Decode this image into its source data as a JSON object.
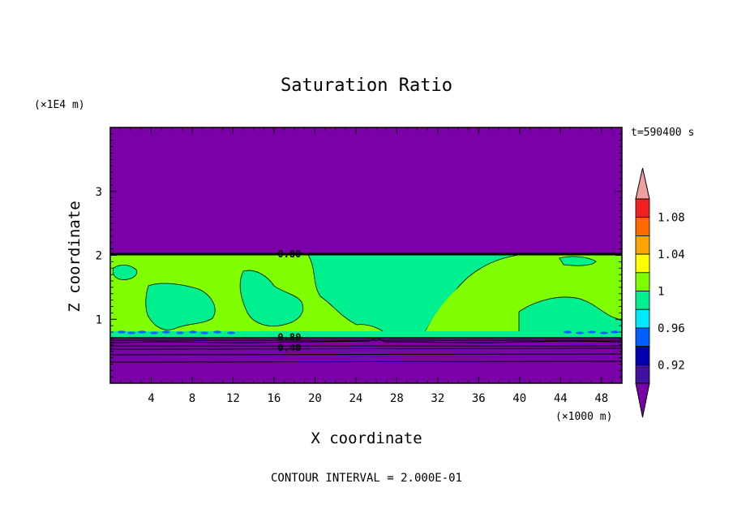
{
  "chart_data": {
    "type": "heatmap",
    "title": "Saturation Ratio",
    "xlabel": "X coordinate",
    "ylabel": "Z coordinate",
    "x_unit": "(×1000 m)",
    "y_unit": "(×1E4 m)",
    "time_label": "t=590400 s",
    "footer": "CONTOUR INTERVAL = 2.000E-01",
    "xlim": [
      0,
      50
    ],
    "ylim": [
      0,
      4
    ],
    "x_ticks": [
      4,
      8,
      12,
      16,
      20,
      24,
      28,
      32,
      36,
      40,
      44,
      48
    ],
    "y_ticks": [
      1,
      2,
      3
    ],
    "contour_labels": [
      {
        "text": "0.80",
        "x": 17.5,
        "z": 2.02
      },
      {
        "text": "0.80",
        "x": 17.5,
        "z": 0.72
      },
      {
        "text": "0.40",
        "x": 17.5,
        "z": 0.55
      }
    ],
    "colorbar": {
      "labels": [
        "1.08",
        "1.04",
        "1",
        "0.96",
        "0.92"
      ],
      "bands": [
        {
          "lo": 1.08,
          "hi": 1.1,
          "color": "#f02020"
        },
        {
          "lo": 1.06,
          "hi": 1.08,
          "color": "#ff6a00"
        },
        {
          "lo": 1.04,
          "hi": 1.06,
          "color": "#ffa500"
        },
        {
          "lo": 1.02,
          "hi": 1.04,
          "color": "#ffff00"
        },
        {
          "lo": 1.0,
          "hi": 1.02,
          "color": "#80ff00"
        },
        {
          "lo": 0.98,
          "hi": 1.0,
          "color": "#00f090"
        },
        {
          "lo": 0.96,
          "hi": 0.98,
          "color": "#00e8ff"
        },
        {
          "lo": 0.94,
          "hi": 0.96,
          "color": "#0060ff"
        },
        {
          "lo": 0.92,
          "hi": 0.94,
          "color": "#0000b0"
        },
        {
          "lo": 0.9,
          "hi": 0.92,
          "color": "#4010a0"
        }
      ],
      "over_color": "#f0a0a0",
      "under_color": "#7a00a8"
    },
    "field_colors": {
      "dry": "#7a00a8",
      "supersat": "#80ff00",
      "near_sat": "#00f090"
    }
  }
}
